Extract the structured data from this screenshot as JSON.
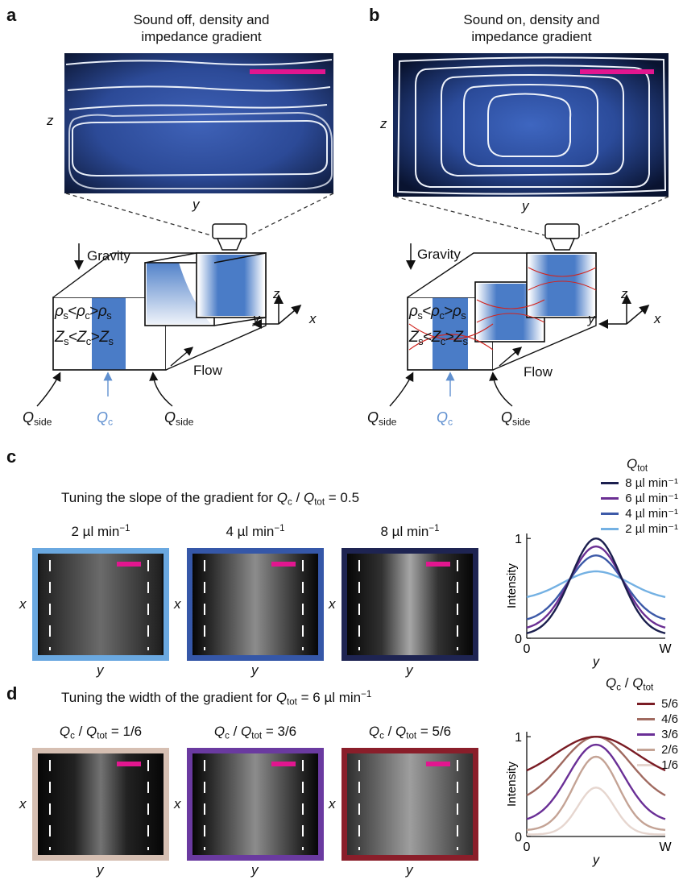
{
  "panels": {
    "a": {
      "letter": "a",
      "title_line1": "Sound off, density and",
      "title_line2": "impedance gradient",
      "axis_z": "z",
      "axis_y": "y"
    },
    "b": {
      "letter": "b",
      "title_line1": "Sound on, density and",
      "title_line2": "impedance gradient",
      "axis_z": "z",
      "axis_y": "y"
    },
    "schematic": {
      "gravity": "Gravity",
      "flow": "Flow",
      "axis_z": "z",
      "axis_y": "y",
      "axis_x": "x",
      "rho": "ρ",
      "Z": "Z",
      "sub_s": "s",
      "sub_c": "c",
      "Q": "Q",
      "sub_side": "side"
    },
    "c": {
      "letter": "c",
      "heading_pre": "Tuning the slope of the gradient for ",
      "heading_post": " = 0.5",
      "images": [
        {
          "label": "2 µl min",
          "border": "#6aa8e0",
          "width_frac": 0.3,
          "peak": 0.42
        },
        {
          "label": "4 µl min",
          "border": "#3557a8",
          "width_frac": 0.22,
          "peak": 0.55
        },
        {
          "label": "8 µl min",
          "border": "#1e2452",
          "width_frac": 0.14,
          "peak": 0.65
        }
      ],
      "legend_title": "tot"
    },
    "d": {
      "letter": "d",
      "heading_pre": "Tuning the width of the gradient for ",
      "heading_post": " = 6 µl min",
      "images": [
        {
          "label": " = 1/6",
          "border": "#d6bfb2",
          "width_frac": 0.13,
          "peak": 0.45
        },
        {
          "label": " = 3/6",
          "border": "#6a3aa0",
          "width_frac": 0.22,
          "peak": 0.55
        },
        {
          "label": " = 5/6",
          "border": "#8a1e2a",
          "width_frac": 0.32,
          "peak": 0.62
        }
      ]
    },
    "common": {
      "x": "x",
      "y": "y",
      "minus1": "−1"
    }
  },
  "chart_data": [
    {
      "type": "line",
      "title": "",
      "xlabel": "y",
      "ylabel": "Intensity",
      "xticks": [
        "0",
        "W"
      ],
      "yticks": [
        "0",
        "1"
      ],
      "ylim": [
        0,
        1.05
      ],
      "legend_title": "Q_tot",
      "legend_position": "top-right",
      "series": [
        {
          "name": "8 µl min⁻¹",
          "color": "#1b1f4e",
          "base": 0.03,
          "peak": 1.0,
          "sigma": 0.18
        },
        {
          "name": "6 µl min⁻¹",
          "color": "#6b2f93",
          "base": 0.08,
          "peak": 0.92,
          "sigma": 0.19
        },
        {
          "name": "4 µl min⁻¹",
          "color": "#3d5aa8",
          "base": 0.16,
          "peak": 0.83,
          "sigma": 0.2
        },
        {
          "name": "2 µl min⁻¹",
          "color": "#74b1e3",
          "base": 0.38,
          "peak": 0.67,
          "sigma": 0.24
        }
      ]
    },
    {
      "type": "line",
      "title": "",
      "xlabel": "y",
      "ylabel": "Intensity",
      "xticks": [
        "0",
        "W"
      ],
      "yticks": [
        "0",
        "1"
      ],
      "ylim": [
        0,
        1.05
      ],
      "legend_title": "Q_c / Q_tot",
      "legend_position": "top-right",
      "series": [
        {
          "name": "5/6",
          "color": "#7a1c24",
          "base": 0.55,
          "peak": 1.0,
          "sigma": 0.3
        },
        {
          "name": "4/6",
          "color": "#a06a60",
          "base": 0.32,
          "peak": 1.0,
          "sigma": 0.25
        },
        {
          "name": "3/6",
          "color": "#6a2f96",
          "base": 0.14,
          "peak": 0.92,
          "sigma": 0.2
        },
        {
          "name": "2/6",
          "color": "#c4a395",
          "base": 0.06,
          "peak": 0.8,
          "sigma": 0.16
        },
        {
          "name": "1/6",
          "color": "#e6d6cf",
          "base": 0.02,
          "peak": 0.49,
          "sigma": 0.13
        }
      ]
    }
  ]
}
